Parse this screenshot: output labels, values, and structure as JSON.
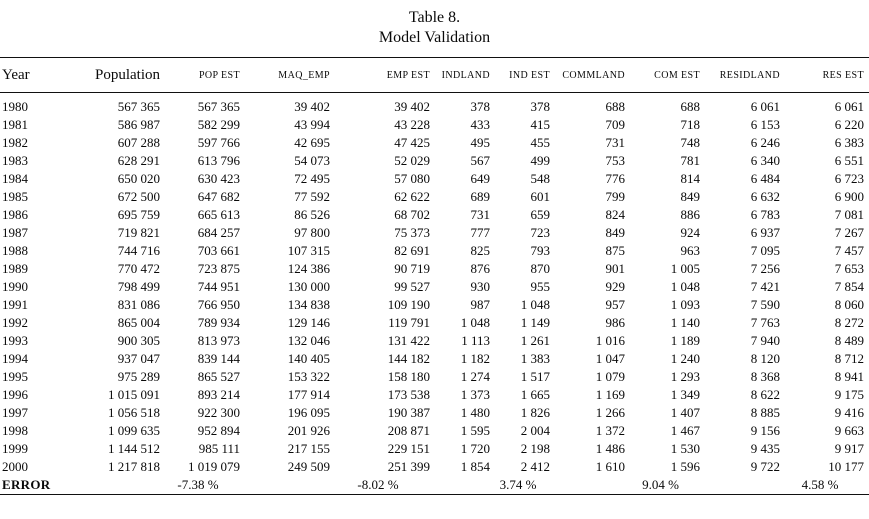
{
  "title": {
    "line1": "Table 8.",
    "line2": "Model Validation"
  },
  "table": {
    "columns": [
      "Year",
      "Population",
      "POP EST",
      "MAQ_EMP",
      "EMP EST",
      "INDLAND",
      "IND EST",
      "COMMLAND",
      "COM EST",
      "RESIDLAND",
      "RES EST"
    ],
    "rows": [
      [
        "1980",
        "567 365",
        "567 365",
        "39 402",
        "39 402",
        "378",
        "378",
        "688",
        "688",
        "6 061",
        "6 061"
      ],
      [
        "1981",
        "586 987",
        "582 299",
        "43 994",
        "43 228",
        "433",
        "415",
        "709",
        "718",
        "6 153",
        "6 220"
      ],
      [
        "1982",
        "607 288",
        "597 766",
        "42 695",
        "47 425",
        "495",
        "455",
        "731",
        "748",
        "6 246",
        "6 383"
      ],
      [
        "1983",
        "628 291",
        "613 796",
        "54 073",
        "52 029",
        "567",
        "499",
        "753",
        "781",
        "6 340",
        "6 551"
      ],
      [
        "1984",
        "650 020",
        "630 423",
        "72 495",
        "57 080",
        "649",
        "548",
        "776",
        "814",
        "6 484",
        "6 723"
      ],
      [
        "1985",
        "672 500",
        "647 682",
        "77 592",
        "62 622",
        "689",
        "601",
        "799",
        "849",
        "6 632",
        "6 900"
      ],
      [
        "1986",
        "695 759",
        "665 613",
        "86 526",
        "68 702",
        "731",
        "659",
        "824",
        "886",
        "6 783",
        "7 081"
      ],
      [
        "1987",
        "719 821",
        "684 257",
        "97 800",
        "75 373",
        "777",
        "723",
        "849",
        "924",
        "6 937",
        "7 267"
      ],
      [
        "1988",
        "744 716",
        "703 661",
        "107 315",
        "82 691",
        "825",
        "793",
        "875",
        "963",
        "7 095",
        "7 457"
      ],
      [
        "1989",
        "770 472",
        "723 875",
        "124 386",
        "90 719",
        "876",
        "870",
        "901",
        "1 005",
        "7 256",
        "7 653"
      ],
      [
        "1990",
        "798 499",
        "744 951",
        "130 000",
        "99 527",
        "930",
        "955",
        "929",
        "1 048",
        "7 421",
        "7 854"
      ],
      [
        "1991",
        "831 086",
        "766 950",
        "134 838",
        "109 190",
        "987",
        "1 048",
        "957",
        "1 093",
        "7 590",
        "8 060"
      ],
      [
        "1992",
        "865 004",
        "789 934",
        "129 146",
        "119 791",
        "1 048",
        "1 149",
        "986",
        "1 140",
        "7 763",
        "8 272"
      ],
      [
        "1993",
        "900 305",
        "813 973",
        "132 046",
        "131 422",
        "1 113",
        "1 261",
        "1 016",
        "1 189",
        "7 940",
        "8 489"
      ],
      [
        "1994",
        "937 047",
        "839 144",
        "140 405",
        "144 182",
        "1 182",
        "1 383",
        "1 047",
        "1 240",
        "8 120",
        "8 712"
      ],
      [
        "1995",
        "975 289",
        "865 527",
        "153 322",
        "158 180",
        "1 274",
        "1 517",
        "1 079",
        "1 293",
        "8 368",
        "8 941"
      ],
      [
        "1996",
        "1 015 091",
        "893 214",
        "177 914",
        "173 538",
        "1 373",
        "1 665",
        "1 169",
        "1 349",
        "8 622",
        "9 175"
      ],
      [
        "1997",
        "1 056 518",
        "922 300",
        "196 095",
        "190 387",
        "1 480",
        "1 826",
        "1 266",
        "1 407",
        "8 885",
        "9 416"
      ],
      [
        "1998",
        "1 099 635",
        "952 894",
        "201 926",
        "208 871",
        "1 595",
        "2 004",
        "1 372",
        "1 467",
        "9 156",
        "9 663"
      ],
      [
        "1999",
        "1 144 512",
        "985 111",
        "217 155",
        "229 151",
        "1 720",
        "2 198",
        "1 486",
        "1 530",
        "9 435",
        "9 917"
      ],
      [
        "2000",
        "1 217 818",
        "1 019 079",
        "249 509",
        "251 399",
        "1 854",
        "2 412",
        "1 610",
        "1 596",
        "9 722",
        "10 177"
      ]
    ],
    "error_row": [
      "ERROR",
      "",
      "-7.38 %",
      "",
      "-8.02 %",
      "",
      "3.74 %",
      "",
      "9.04 %",
      "",
      "4.58 %"
    ]
  }
}
